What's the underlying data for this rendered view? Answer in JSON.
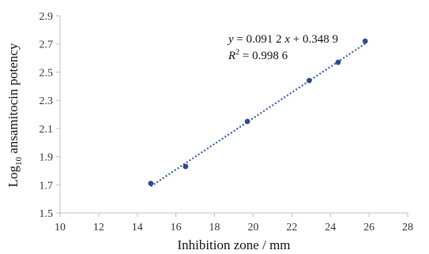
{
  "chart_data": {
    "type": "scatter",
    "title": "",
    "xlabel": "Inhibition zone / mm",
    "ylabel": {
      "prefix": "Log",
      "subscript": "10",
      "suffix": " ansamitocin potency"
    },
    "xlim": [
      10,
      28
    ],
    "ylim": [
      1.5,
      2.9
    ],
    "x_ticks": [
      10,
      12,
      14,
      16,
      18,
      20,
      22,
      24,
      26,
      28
    ],
    "y_ticks": [
      1.5,
      1.7,
      1.9,
      2.1,
      2.3,
      2.5,
      2.7,
      2.9
    ],
    "x_tick_labels": [
      "10",
      "12",
      "14",
      "16",
      "18",
      "20",
      "22",
      "24",
      "26",
      "28"
    ],
    "y_tick_labels": [
      "1.5",
      "1.7",
      "1.9",
      "2.1",
      "2.3",
      "2.5",
      "2.7",
      "2.9"
    ],
    "grid": false,
    "legend": "none",
    "series": [
      {
        "points": [
          {
            "x": 14.7,
            "y": 1.71
          },
          {
            "x": 16.5,
            "y": 1.83
          },
          {
            "x": 19.7,
            "y": 2.15
          },
          {
            "x": 22.9,
            "y": 2.44
          },
          {
            "x": 24.4,
            "y": 2.57
          },
          {
            "x": 25.8,
            "y": 2.72
          }
        ],
        "marker_color": "#2f4b8f"
      }
    ],
    "trendline": {
      "type": "linear",
      "slope": 0.0912,
      "intercept": 0.3489,
      "x_range": [
        14.7,
        25.8
      ],
      "style": "dotted",
      "color": "#2e5fa8"
    },
    "annotations": {
      "equation": {
        "y_var": "y",
        "eq": " = 0.091 2 ",
        "x_var": "x",
        "rest": " + 0.348 9"
      },
      "r_squared": {
        "var": "R",
        "sup": "2",
        "rest": " = 0.998 6"
      }
    }
  }
}
